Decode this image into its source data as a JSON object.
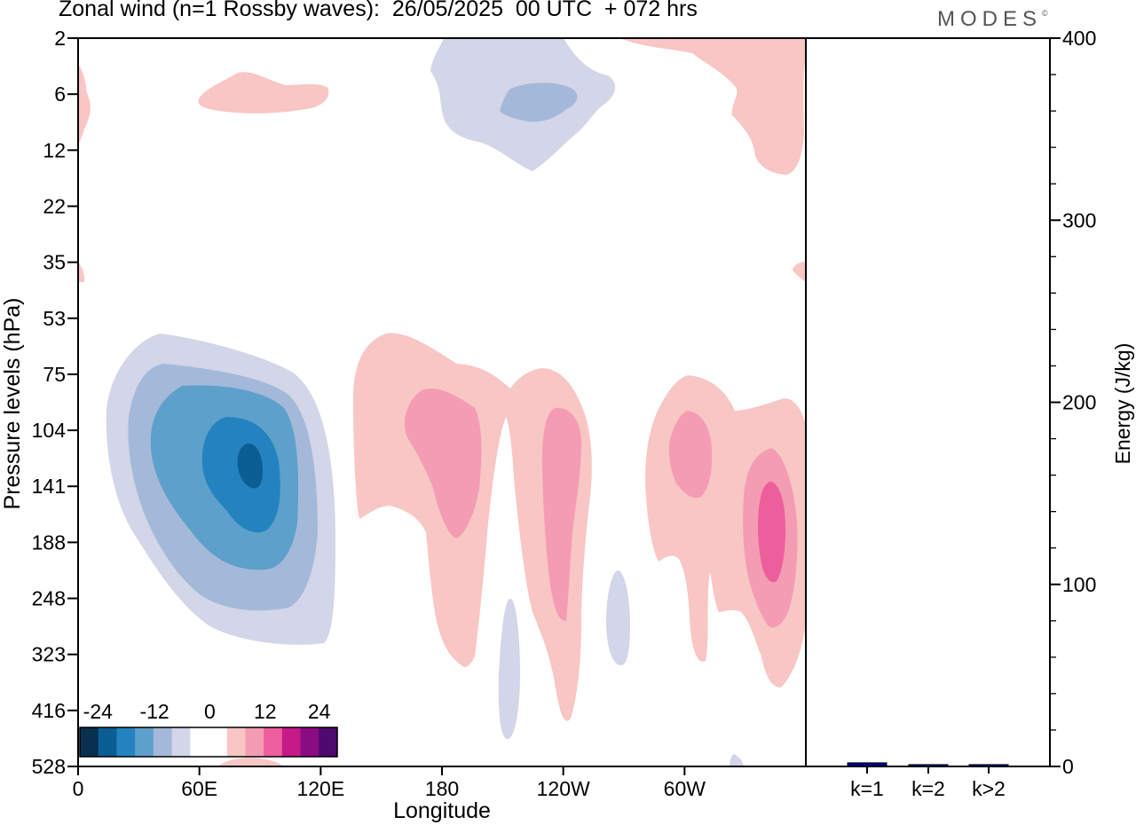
{
  "title": "Zonal wind (n=1 Rossby waves):  26/05/2025  00 UTC  + 072 hrs",
  "logo": "MODES",
  "logo_mark": "©",
  "colors": {
    "neg": [
      "#08304f",
      "#0b5e94",
      "#2483bf",
      "#5ea0cc",
      "#a4b9d9",
      "#d3d5e8"
    ],
    "zero": "#ffffff",
    "pos": [
      "#f8c6c4",
      "#f49cb3",
      "#ec5f9c",
      "#c41b89",
      "#8a0c83",
      "#4e0a6e"
    ],
    "energy_bar": "#00007f"
  },
  "chart_data": [
    {
      "type": "heatmap",
      "title": "Zonal wind (n=1 Rossby waves):  26/05/2025  00 UTC  + 072 hrs",
      "xlabel": "Longitude",
      "ylabel": "Pressure levels (hPa)",
      "x_ticks": [
        "0",
        "60E",
        "120E",
        "180",
        "120W",
        "60W"
      ],
      "x_tick_degrees": [
        0,
        60,
        120,
        180,
        240,
        300
      ],
      "xlim_degrees": [
        0,
        360
      ],
      "y_ticks": [
        "2",
        "6",
        "12",
        "22",
        "35",
        "53",
        "75",
        "104",
        "141",
        "188",
        "248",
        "323",
        "416",
        "528"
      ],
      "colorbar_labels": [
        "-24",
        "-12",
        "0",
        "12",
        "24"
      ],
      "colorbar_levels": [
        -30,
        -25,
        -20,
        -15,
        -10,
        -5,
        0,
        5,
        10,
        15,
        20,
        25,
        30
      ],
      "features": [
        {
          "sign": "negative",
          "lon": 85,
          "level": "104-141",
          "min": -22
        },
        {
          "sign": "negative",
          "lon": 235,
          "level": "6",
          "min": -8
        },
        {
          "sign": "positive",
          "lon": 340,
          "level": "141-188",
          "max": 14
        },
        {
          "sign": "positive",
          "lon": 190,
          "level": "104",
          "max": 10
        },
        {
          "sign": "positive",
          "lon": 238,
          "level": "141-188",
          "max": 10
        },
        {
          "sign": "positive",
          "lon": 310,
          "level": "104",
          "max": 10
        }
      ]
    },
    {
      "type": "bar",
      "ylabel": "Energy (J/kg)",
      "categories": [
        "k=1",
        "k=2",
        "k>2"
      ],
      "values": [
        2,
        1,
        1
      ],
      "ylim": [
        0,
        400
      ],
      "y_ticks": [
        "0",
        "100",
        "200",
        "300",
        "400"
      ]
    }
  ]
}
